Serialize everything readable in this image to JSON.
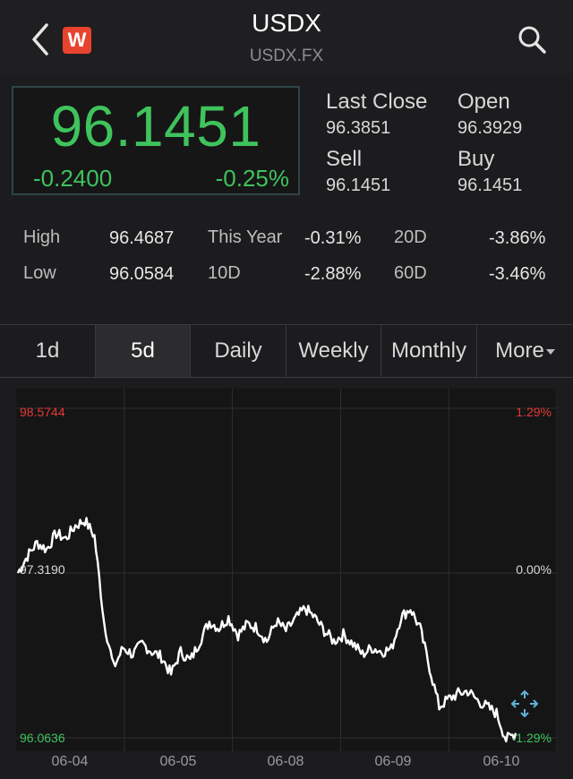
{
  "header": {
    "title": "USDX",
    "subtitle": "USDX.FX",
    "logo_letter": "W"
  },
  "quote": {
    "price": "96.1451",
    "change": "-0.2400",
    "change_pct": "-0.25%",
    "last_close_label": "Last Close",
    "last_close": "96.3851",
    "open_label": "Open",
    "open": "96.3929",
    "sell_label": "Sell",
    "sell": "96.1451",
    "buy_label": "Buy",
    "buy": "96.1451"
  },
  "stats": {
    "high_label": "High",
    "high": "96.4687",
    "low_label": "Low",
    "low": "96.0584",
    "this_year_label": "This Year",
    "this_year": "-0.31%",
    "d10_label": "10D",
    "d10": "-2.88%",
    "d20_label": "20D",
    "d20": "-3.86%",
    "d60_label": "60D",
    "d60": "-3.46%"
  },
  "tabs": [
    "1d",
    "5d",
    "Daily",
    "Weekly",
    "Monthly",
    "More"
  ],
  "active_tab": "5d",
  "colors": {
    "up": "#3fc35c",
    "down": "#e53935",
    "line": "#ffffff"
  },
  "chart_data": {
    "type": "line",
    "title": "",
    "y_top_label": "98.5744",
    "y_mid_label": "97.3190",
    "y_bottom_label": "96.0636",
    "pct_top_label": "1.29%",
    "pct_mid_label": "0.00%",
    "pct_bottom_label": "-1.29%",
    "ylim": [
      96.0636,
      98.5744
    ],
    "x_ticks": [
      "06-04",
      "06-05",
      "06-08",
      "06-09",
      "06-10"
    ],
    "series": [
      {
        "values": [
          97.32,
          97.45,
          97.55,
          97.5,
          97.62,
          97.58,
          97.68,
          97.72,
          97.6,
          96.95,
          96.6,
          96.75,
          96.7,
          96.78,
          96.72,
          96.68,
          96.55,
          96.72,
          96.65,
          96.8,
          96.95,
          96.9,
          96.98,
          96.85,
          96.93,
          96.9,
          96.8,
          96.95,
          96.88,
          96.97,
          97.05,
          96.98,
          96.88,
          96.8,
          96.85,
          96.78,
          96.7,
          96.75,
          96.72,
          96.74,
          96.98,
          97.05,
          96.9,
          96.6,
          96.3,
          96.36,
          96.4,
          96.42,
          96.35,
          96.3,
          96.25,
          96.05,
          96.1
        ]
      }
    ]
  }
}
